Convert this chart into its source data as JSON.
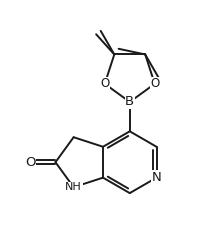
{
  "background": "#ffffff",
  "line_color": "#1a1a1a",
  "line_width": 1.4,
  "font_size": 8.5,
  "figsize": [
    2.06,
    2.35
  ],
  "dpi": 100,
  "xlim": [
    -1.5,
    8.5
  ],
  "ylim": [
    -0.5,
    10.5
  ]
}
